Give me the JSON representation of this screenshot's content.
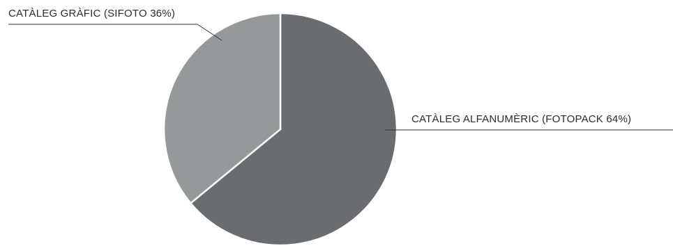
{
  "chart_data": {
    "type": "pie",
    "slices": [
      {
        "label": "CATÀLEG ALFANUMÈRIC (FOTOPACK 64%)",
        "value": 64,
        "color": "#6b6c6f"
      },
      {
        "label": "CATÀLEG GRÀFIC (SIFOTO 36%)",
        "value": 36,
        "color": "#97989a"
      }
    ],
    "start_angle_deg": 0,
    "direction": "clockwise"
  }
}
